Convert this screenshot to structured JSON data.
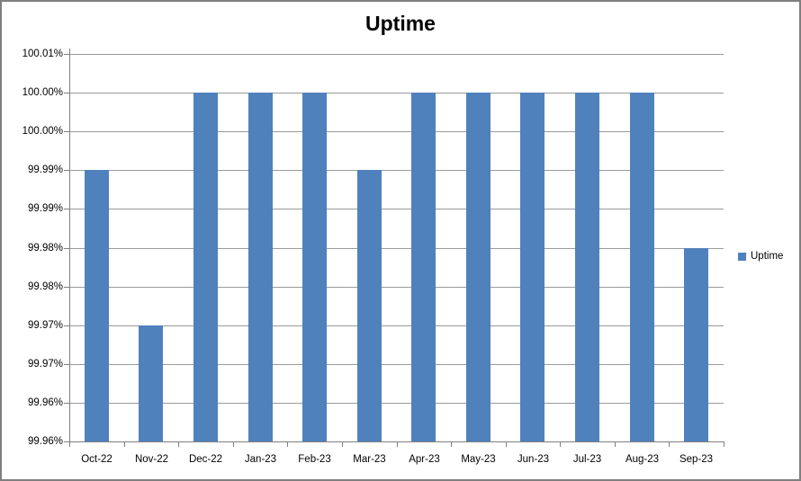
{
  "window": {
    "background": "#ffffff",
    "border_color": "#7f7f7f"
  },
  "chart_data": {
    "type": "bar",
    "title": "Uptime",
    "categories": [
      "Oct-22",
      "Nov-22",
      "Dec-22",
      "Jan-23",
      "Feb-23",
      "Mar-23",
      "Apr-23",
      "May-23",
      "Jun-23",
      "Jul-23",
      "Aug-23",
      "Sep-23"
    ],
    "series": [
      {
        "name": "Uptime",
        "values": [
          99.99,
          99.97,
          100.0,
          100.0,
          100.0,
          99.99,
          100.0,
          100.0,
          100.0,
          100.0,
          100.0,
          99.98
        ]
      }
    ],
    "value_format": "percent-2dp",
    "y_tick_labels": [
      "100.01%",
      "100.00%",
      "100.00%",
      "99.99%",
      "99.99%",
      "99.98%",
      "99.98%",
      "99.97%",
      "99.97%",
      "99.96%",
      "99.96%"
    ],
    "ylim": [
      99.96,
      100.01
    ],
    "y_major_step": 0.005,
    "grid": "horizontal",
    "xlabel": "",
    "ylabel": "",
    "legend": {
      "label": "Uptime",
      "position": "right"
    },
    "colors": {
      "bar": "#4F81BD",
      "gridline": "#9a9a9a",
      "axis": "#808080",
      "text": "#000000"
    }
  }
}
